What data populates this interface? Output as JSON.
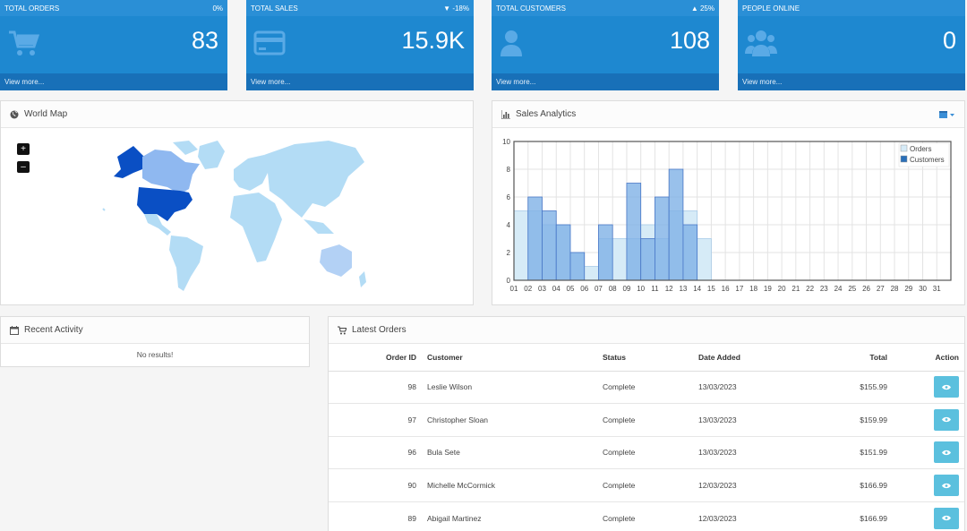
{
  "tiles": [
    {
      "label": "TOTAL ORDERS",
      "change": "0%",
      "value": "83",
      "link": "View more...",
      "icon": "cart-icon"
    },
    {
      "label": "TOTAL SALES",
      "change": "▼ -18%",
      "value": "15.9K",
      "link": "View more...",
      "icon": "credit-card-icon"
    },
    {
      "label": "TOTAL CUSTOMERS",
      "change": "▲ 25%",
      "value": "108",
      "link": "View more...",
      "icon": "user-icon"
    },
    {
      "label": "PEOPLE ONLINE",
      "change": "",
      "value": "0",
      "link": "View more...",
      "icon": "users-icon"
    }
  ],
  "world_map": {
    "title": "World Map",
    "zoom_in": "+",
    "zoom_out": "–"
  },
  "sales_analytics": {
    "title": "Sales Analytics"
  },
  "chart_data": {
    "type": "bar",
    "categories": [
      "01",
      "02",
      "03",
      "04",
      "05",
      "06",
      "07",
      "08",
      "09",
      "10",
      "11",
      "12",
      "13",
      "14",
      "15",
      "16",
      "17",
      "18",
      "19",
      "20",
      "21",
      "22",
      "23",
      "24",
      "25",
      "26",
      "27",
      "28",
      "29",
      "30",
      "31"
    ],
    "series": [
      {
        "name": "Orders",
        "values": [
          5,
          5,
          4,
          4,
          2,
          1,
          3,
          3,
          3,
          4,
          3,
          5,
          5,
          3,
          0,
          0,
          0,
          0,
          0,
          0,
          0,
          0,
          0,
          0,
          0,
          0,
          0,
          0,
          0,
          0,
          0
        ]
      },
      {
        "name": "Customers",
        "values": [
          0,
          6,
          5,
          4,
          2,
          0,
          4,
          0,
          7,
          3,
          6,
          8,
          4,
          0,
          0,
          0,
          0,
          0,
          0,
          0,
          0,
          0,
          0,
          0,
          0,
          0,
          0,
          0,
          0,
          0,
          0
        ]
      }
    ],
    "ylim": [
      0,
      10
    ],
    "yticks": [
      "0",
      "2",
      "4",
      "6",
      "8",
      "10"
    ],
    "legend": "top-right",
    "colors": {
      "orders": "#d6ebf7",
      "customers": "#7fb1e6"
    }
  },
  "recent_activity": {
    "title": "Recent Activity",
    "empty": "No results!"
  },
  "latest_orders": {
    "title": "Latest Orders",
    "headers": {
      "id": "Order ID",
      "customer": "Customer",
      "status": "Status",
      "date": "Date Added",
      "total": "Total",
      "action": "Action"
    },
    "rows": [
      {
        "id": "98",
        "customer": "Leslie Wilson",
        "status": "Complete",
        "date": "13/03/2023",
        "total": "$155.99"
      },
      {
        "id": "97",
        "customer": "Christopher Sloan",
        "status": "Complete",
        "date": "13/03/2023",
        "total": "$159.99"
      },
      {
        "id": "96",
        "customer": "Bula Sete",
        "status": "Complete",
        "date": "13/03/2023",
        "total": "$151.99"
      },
      {
        "id": "90",
        "customer": "Michelle McCormick",
        "status": "Complete",
        "date": "12/03/2023",
        "total": "$166.99"
      },
      {
        "id": "89",
        "customer": "Abigail Martinez",
        "status": "Complete",
        "date": "12/03/2023",
        "total": "$166.99"
      }
    ]
  },
  "colors": {
    "tile": "#1e88d0",
    "tile_foot": "#1870b8",
    "action_btn": "#5bc0de"
  }
}
